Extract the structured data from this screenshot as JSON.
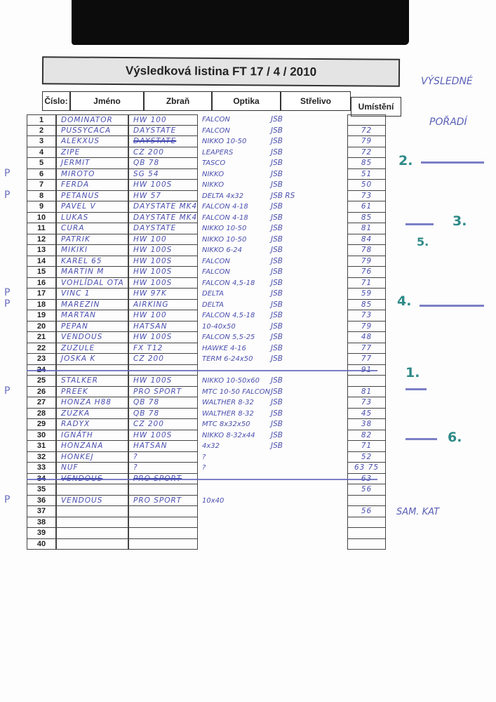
{
  "document": {
    "title": "Výsledková listina FT 17 / 4 / 2010",
    "headers": [
      "Číslo:",
      "Jméno",
      "Zbraň",
      "Optika",
      "Střelivo",
      "Umístění"
    ],
    "rows": [
      {
        "n": "1",
        "name": "DOMINATOR",
        "gun": "HW 100",
        "optics": "FALCON",
        "ammo": "JSB",
        "place": ""
      },
      {
        "n": "2",
        "name": "PUSSYCACA",
        "gun": "DAYSTATE",
        "optics": "FALCON",
        "ammo": "JSB",
        "place": "72"
      },
      {
        "n": "3",
        "name": "ALEKXUS",
        "gun": "DAYSTATE",
        "optics": "NIKKO 10-50",
        "ammo": "JSB",
        "place": "79",
        "gun_struck": true
      },
      {
        "n": "4",
        "name": "ZIPE",
        "gun": "CZ 200",
        "optics": "LEAPERS",
        "ammo": "JSB",
        "place": "72"
      },
      {
        "n": "5",
        "name": "JERMIT",
        "gun": "QB 78",
        "optics": "TASCO",
        "ammo": "JSB",
        "place": "85"
      },
      {
        "n": "6",
        "name": "MIROTO",
        "gun": "SG 54",
        "optics": "NIKKO",
        "ammo": "JSB",
        "place": "51",
        "p": "P"
      },
      {
        "n": "7",
        "name": "FERDA",
        "gun": "HW 100S",
        "optics": "NIKKO",
        "ammo": "JSB",
        "place": "50"
      },
      {
        "n": "8",
        "name": "PETANUS",
        "gun": "HW 57",
        "optics": "DELTA 4x32",
        "ammo": "JSB RS",
        "place": "73",
        "p": "P"
      },
      {
        "n": "9",
        "name": "PAVEL V",
        "gun": "DAYSTATE MK4",
        "optics": "FALCON 4-18",
        "ammo": "JSB",
        "place": "61"
      },
      {
        "n": "10",
        "name": "LUKAS",
        "gun": "DAYSTATE MK4",
        "optics": "FALCON 4-18",
        "ammo": "JSB",
        "place": "85"
      },
      {
        "n": "11",
        "name": "CURA",
        "gun": "DAYSTATE",
        "optics": "NIKKO 10-50",
        "ammo": "JSB",
        "place": "81"
      },
      {
        "n": "12",
        "name": "PATRIK",
        "gun": "HW 100",
        "optics": "NIKKO 10-50",
        "ammo": "JSB",
        "place": "84"
      },
      {
        "n": "13",
        "name": "MIKIKI",
        "gun": "HW 100S",
        "optics": "NIKKO 6-24",
        "ammo": "JSB",
        "place": "78"
      },
      {
        "n": "14",
        "name": "KAREL 65",
        "gun": "HW 100S",
        "optics": "FALCON",
        "ammo": "JSB",
        "place": "79"
      },
      {
        "n": "15",
        "name": "MARTIN M",
        "gun": "HW 100S",
        "optics": "FALCON",
        "ammo": "JSB",
        "place": "76"
      },
      {
        "n": "16",
        "name": "VOHLÍDAL OTA",
        "gun": "HW 100S",
        "optics": "FALCON 4,5-18",
        "ammo": "JSB",
        "place": "71"
      },
      {
        "n": "17",
        "name": "VINC 1",
        "gun": "HW 97K",
        "optics": "DELTA",
        "ammo": "JSB",
        "place": "59",
        "p": "P"
      },
      {
        "n": "18",
        "name": "MAREZIN",
        "gun": "AIRKING",
        "optics": "DELTA",
        "ammo": "JSB",
        "place": "85",
        "p": "P"
      },
      {
        "n": "19",
        "name": "MARTAN",
        "gun": "HW 100",
        "optics": "FALCON 4,5-18",
        "ammo": "JSB",
        "place": "73"
      },
      {
        "n": "20",
        "name": "PEPAN",
        "gun": "HATSAN",
        "optics": "10-40x50",
        "ammo": "JSB",
        "place": "79"
      },
      {
        "n": "21",
        "name": "VENDOUS",
        "gun": "HW 100S",
        "optics": "FALCON 5,5-25",
        "ammo": "JSB",
        "place": "48"
      },
      {
        "n": "22",
        "name": "ZUZULE",
        "gun": "FX T12",
        "optics": "HAWKE 4-16",
        "ammo": "JSB",
        "place": "77"
      },
      {
        "n": "23",
        "name": "JOSKA K",
        "gun": "CZ 200",
        "optics": "TERM 6-24x50",
        "ammo": "JSB",
        "place": "77"
      },
      {
        "n": "24",
        "name": "",
        "gun": "",
        "optics": "",
        "ammo": "",
        "place": "91",
        "struck": true
      },
      {
        "n": "25",
        "name": "STALKER",
        "gun": "HW 100S",
        "optics": "NIKKO 10-50x60",
        "ammo": "JSB",
        "place": ""
      },
      {
        "n": "26",
        "name": "PREEK",
        "gun": "PRO SPORT",
        "optics": "MTC 10-50 FALCON",
        "ammo": "JSB",
        "place": "81",
        "p": "P"
      },
      {
        "n": "27",
        "name": "HONZA H88",
        "gun": "QB 78",
        "optics": "WALTHER 8-32",
        "ammo": "JSB",
        "place": "73"
      },
      {
        "n": "28",
        "name": "ZUZKA",
        "gun": "QB 78",
        "optics": "WALTHER 8-32",
        "ammo": "JSB",
        "place": "45"
      },
      {
        "n": "29",
        "name": "RADYX",
        "gun": "CZ 200",
        "optics": "MTC 8x32x50",
        "ammo": "JSB",
        "place": "38"
      },
      {
        "n": "30",
        "name": "IGNÁTH",
        "gun": "HW 100S",
        "optics": "NIKKO 8-32x44",
        "ammo": "JSB",
        "place": "82"
      },
      {
        "n": "31",
        "name": "HONZANA",
        "gun": "HATSAN",
        "optics": "4x32",
        "ammo": "JSB",
        "place": "71"
      },
      {
        "n": "32",
        "name": "HONKEJ",
        "gun": "?",
        "optics": "?",
        "ammo": "",
        "place": "52"
      },
      {
        "n": "33",
        "name": "NUF",
        "gun": "?",
        "optics": "?",
        "ammo": "",
        "place": "63 75"
      },
      {
        "n": "34",
        "name": "VENDOUS",
        "gun": "PRO SPORT",
        "optics": "",
        "ammo": "",
        "place": "63",
        "struck": true
      },
      {
        "n": "35",
        "name": "",
        "gun": "",
        "optics": "",
        "ammo": "",
        "place": "56"
      },
      {
        "n": "36",
        "name": "VENDOUS",
        "gun": "PRO SPORT",
        "optics": "10x40",
        "ammo": "",
        "place": "",
        "p": "P"
      },
      {
        "n": "37",
        "name": "",
        "gun": "",
        "optics": "",
        "ammo": "",
        "place": "56"
      },
      {
        "n": "38",
        "name": "",
        "gun": "",
        "optics": "",
        "ammo": "",
        "place": ""
      },
      {
        "n": "39",
        "name": "",
        "gun": "",
        "optics": "",
        "ammo": "",
        "place": ""
      },
      {
        "n": "40",
        "name": "",
        "gun": "",
        "optics": "",
        "ammo": "",
        "place": ""
      }
    ]
  },
  "margin_notes": {
    "heading": [
      "VÝSLEDNÉ",
      "POŘADÍ"
    ],
    "ranks": [
      "2.",
      "3.",
      "5.",
      "4.",
      "1.",
      "6."
    ],
    "footer": "SAM. KAT",
    "rank_color": "#2e8a88",
    "ink_color": "#4b4fae"
  }
}
